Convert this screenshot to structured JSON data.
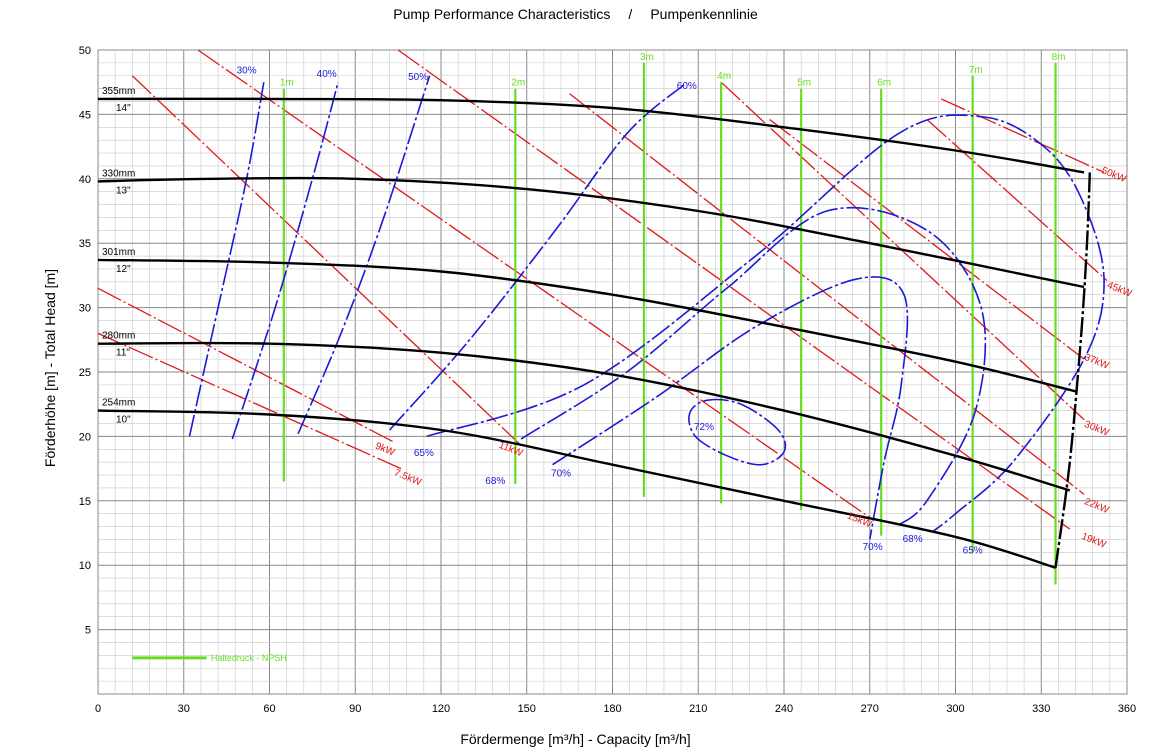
{
  "chart_data": {
    "type": "line",
    "title_en": "Pump Performance Characteristics",
    "title_sep": "/",
    "title_de": "Pumpenkennlinie",
    "xlabel": "Fördermenge  [m³/h]   -   Capacity  [m³/h]",
    "ylabel": "Förderhöhe [m]   -   Total Head  [m]",
    "xlim": [
      0,
      360
    ],
    "ylim": [
      0,
      50
    ],
    "xticks": [
      0,
      30,
      60,
      90,
      120,
      150,
      180,
      210,
      240,
      270,
      300,
      330,
      360
    ],
    "yticks": [
      5,
      10,
      15,
      20,
      25,
      30,
      35,
      40,
      45,
      50
    ],
    "grid": true,
    "colors": {
      "head": "#000000",
      "efficiency": "#1a1ad6",
      "power": "#e01818",
      "npsh": "#66dd22"
    },
    "head_curves": [
      {
        "label_mm": "355mm",
        "label_in": "14\"",
        "x": [
          0,
          60,
          120,
          180,
          240,
          300,
          345
        ],
        "y": [
          46.2,
          46.2,
          46.1,
          45.5,
          44.0,
          42.2,
          40.5
        ]
      },
      {
        "label_mm": "330mm",
        "label_in": "13\"",
        "x": [
          0,
          40,
          90,
          150,
          210,
          270,
          345
        ],
        "y": [
          39.8,
          40.0,
          40.0,
          39.2,
          37.5,
          35.0,
          31.6
        ]
      },
      {
        "label_mm": "301mm",
        "label_in": "12\"",
        "x": [
          0,
          60,
          120,
          180,
          240,
          300,
          342
        ],
        "y": [
          33.7,
          33.5,
          32.8,
          31.0,
          28.5,
          25.8,
          23.5
        ]
      },
      {
        "label_mm": "280mm",
        "label_in": "11\"",
        "x": [
          0,
          60,
          120,
          180,
          240,
          300,
          340
        ],
        "y": [
          27.2,
          27.2,
          26.5,
          24.8,
          22.0,
          18.5,
          15.8
        ]
      },
      {
        "label_mm": "254mm",
        "label_in": "10\"",
        "x": [
          0,
          60,
          120,
          180,
          240,
          300,
          335
        ],
        "y": [
          22.0,
          21.7,
          20.5,
          17.8,
          15.0,
          12.2,
          9.8
        ]
      }
    ],
    "limit_curve": {
      "x": [
        347,
        346,
        344,
        340,
        335
      ],
      "y": [
        40.5,
        35.0,
        28.0,
        18.0,
        9.8
      ]
    },
    "efficiency_curves": [
      {
        "label": "30%",
        "x": [
          32,
          42,
          52,
          58
        ],
        "y": [
          20.0,
          30.0,
          40.0,
          47.5
        ]
      },
      {
        "label": "40%",
        "x": [
          47,
          62,
          75,
          84
        ],
        "y": [
          19.8,
          30.0,
          40.0,
          47.5
        ]
      },
      {
        "label": "50%",
        "x": [
          70,
          85,
          100,
          116
        ],
        "y": [
          20.2,
          28.0,
          37.0,
          48.0
        ]
      },
      {
        "label": "60%",
        "x": [
          102,
          130,
          160,
          185,
          205
        ],
        "y": [
          20.5,
          27.5,
          36.0,
          43.5,
          47.3
        ]
      },
      {
        "label": "65%",
        "x": [
          115,
          170,
          230,
          280,
          310,
          332,
          345,
          352,
          345,
          320,
          300,
          292
        ],
        "y": [
          20.0,
          24.0,
          34.0,
          43.5,
          44.8,
          42.3,
          38.0,
          32.0,
          26.0,
          18.0,
          14.0,
          12.6
        ]
      },
      {
        "label": "68%",
        "x": [
          148,
          185,
          220,
          255,
          290,
          309,
          307,
          290,
          280
        ],
        "y": [
          19.8,
          25.0,
          31.5,
          37.5,
          36.0,
          30.0,
          22.0,
          15.0,
          13.1
        ]
      },
      {
        "label": "70%",
        "x": [
          159,
          195,
          230,
          265,
          282,
          281,
          275,
          270
        ],
        "y": [
          17.8,
          23.0,
          28.5,
          32.2,
          31.0,
          24.0,
          18.0,
          12.0
        ]
      },
      {
        "label": "72%",
        "closed": true,
        "x": [
          213,
          225,
          238,
          240,
          232,
          220,
          209,
          207
        ],
        "y": [
          22.8,
          22.5,
          20.5,
          18.8,
          17.8,
          18.5,
          20.0,
          21.8
        ]
      }
    ],
    "power_lines": [
      {
        "label": "7.5kW",
        "x": [
          0,
          106
        ],
        "y": [
          28.0,
          17.5
        ]
      },
      {
        "label": "9kW",
        "x": [
          0,
          104
        ],
        "y": [
          31.5,
          19.5
        ]
      },
      {
        "label": "11kW",
        "x": [
          12,
          148
        ],
        "y": [
          48.0,
          19.3
        ]
      },
      {
        "label": "15kW",
        "x": [
          35,
          270
        ],
        "y": [
          50.0,
          13.7
        ]
      },
      {
        "label": "19kW",
        "x": [
          105,
          340
        ],
        "y": [
          50.0,
          12.8
        ]
      },
      {
        "label": "22kW",
        "x": [
          165,
          345
        ],
        "y": [
          46.6,
          15.5
        ]
      },
      {
        "label": "30kW",
        "x": [
          218,
          345
        ],
        "y": [
          47.5,
          21.3
        ]
      },
      {
        "label": "37kW",
        "x": [
          235,
          345
        ],
        "y": [
          44.6,
          26.0
        ]
      },
      {
        "label": "45kW",
        "x": [
          290,
          353
        ],
        "y": [
          44.6,
          32.1
        ]
      },
      {
        "label": "50kW",
        "x": [
          295,
          352
        ],
        "y": [
          46.2,
          40.5
        ]
      }
    ],
    "power_labels": [
      {
        "label": "7.5kW",
        "x": 108,
        "y": 16.6
      },
      {
        "label": "9kW",
        "x": 100,
        "y": 18.8
      },
      {
        "label": "11kW",
        "x": 144,
        "y": 18.8
      },
      {
        "label": "15kW",
        "x": 266,
        "y": 13.3
      },
      {
        "label": "19kW",
        "x": 348,
        "y": 11.7
      },
      {
        "label": "22kW",
        "x": 349,
        "y": 14.4
      },
      {
        "label": "30kW",
        "x": 349,
        "y": 20.4
      },
      {
        "label": "37kW",
        "x": 349,
        "y": 25.6
      },
      {
        "label": "45kW",
        "x": 357,
        "y": 31.2
      },
      {
        "label": "50kW",
        "x": 355,
        "y": 40.1
      }
    ],
    "efficiency_labels": [
      {
        "label": "30%",
        "x": 52,
        "y": 48.5
      },
      {
        "label": "40%",
        "x": 80,
        "y": 48.2
      },
      {
        "label": "50%",
        "x": 112,
        "y": 48.0
      },
      {
        "label": "60%",
        "x": 206,
        "y": 47.3
      },
      {
        "label": "65%",
        "x": 114,
        "y": 18.8
      },
      {
        "label": "68%",
        "x": 139,
        "y": 16.6
      },
      {
        "label": "70%",
        "x": 162,
        "y": 17.2
      },
      {
        "label": "72%",
        "x": 212,
        "y": 20.8
      },
      {
        "label": "70%",
        "x": 271,
        "y": 11.5
      },
      {
        "label": "68%",
        "x": 285,
        "y": 12.1
      },
      {
        "label": "65%",
        "x": 306,
        "y": 11.2
      }
    ],
    "npsh_lines": [
      {
        "label": "1m",
        "x": 65,
        "y_top": 47.0,
        "y_bottom": 16.5
      },
      {
        "label": "2m",
        "x": 146,
        "y_top": 47.0,
        "y_bottom": 16.3
      },
      {
        "label": "3m",
        "x": 191,
        "y_top": 49.0,
        "y_bottom": 15.3
      },
      {
        "label": "4m",
        "x": 218,
        "y_top": 47.5,
        "y_bottom": 14.8
      },
      {
        "label": "5m",
        "x": 246,
        "y_top": 47.0,
        "y_bottom": 14.3
      },
      {
        "label": "6m",
        "x": 274,
        "y_top": 47.0,
        "y_bottom": 12.3
      },
      {
        "label": "7m",
        "x": 306,
        "y_top": 48.0,
        "y_bottom": 11.0
      },
      {
        "label": "8m",
        "x": 335,
        "y_top": 49.0,
        "y_bottom": 8.5
      }
    ],
    "legend": {
      "label": "Haltedruck  -  NPSH",
      "position": "bottom-left"
    }
  }
}
